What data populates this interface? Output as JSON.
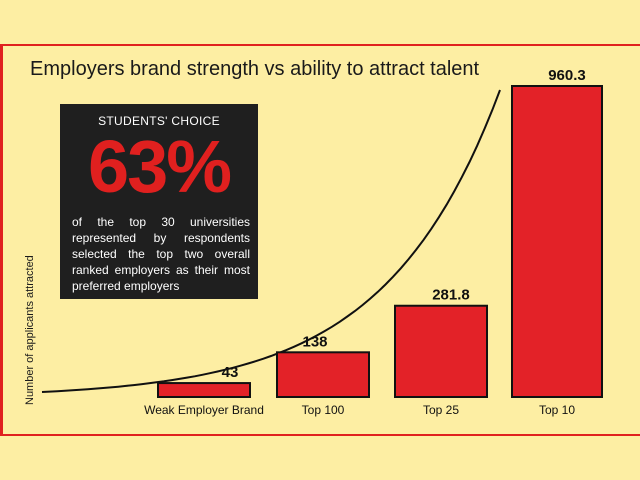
{
  "chart_data": {
    "type": "bar",
    "title": "Employers brand strength vs ability to attract talent",
    "xlabel": "",
    "ylabel": "Number of applicants attracted",
    "categories": [
      "Weak Employer Brand",
      "Top 100",
      "Top 25",
      "Top 10"
    ],
    "values": [
      43,
      138,
      281.8,
      960.3
    ],
    "value_labels": [
      "43",
      "138",
      "281.8",
      "960.3"
    ],
    "ylim": [
      0,
      960.3
    ],
    "grid": false,
    "legend": "none",
    "bar_color": "#e32228",
    "trend_curve": "exponential"
  },
  "callout": {
    "heading": "STUDENTS' CHOICE",
    "percent": "63%",
    "body": "of the top 30 universities represented by respondents selected the top two overall ranked employers as their most preferred employers"
  },
  "colors": {
    "background": "#fdeea3",
    "accent_red": "#e0201f",
    "callout_bg": "#1f1f1f"
  }
}
